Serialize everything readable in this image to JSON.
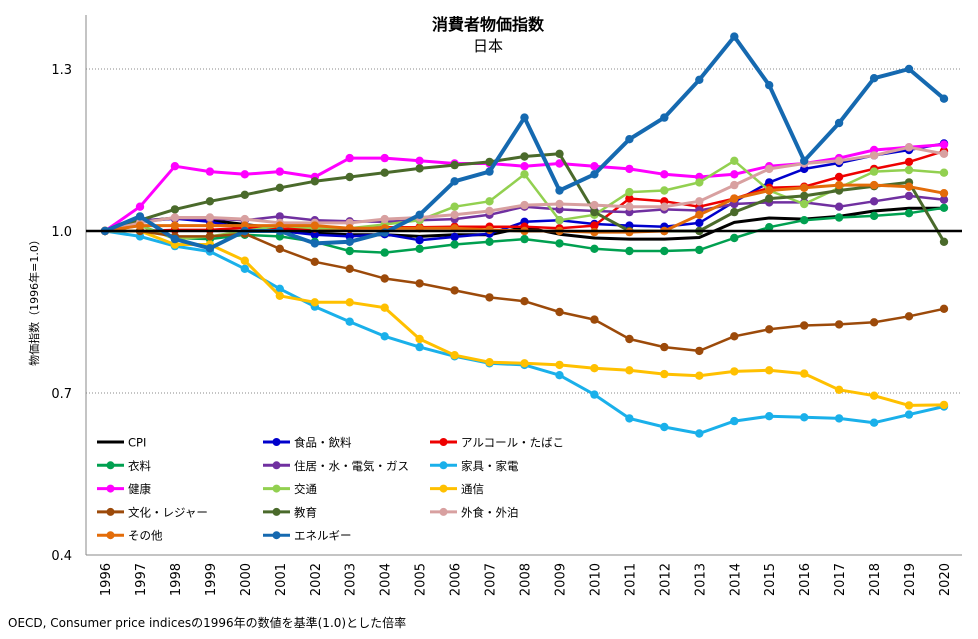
{
  "chart_data": {
    "type": "line",
    "title": "消費者物価指数",
    "subtitle": "日本",
    "ylabel": "物価指数（1996年=1.0）",
    "xlabel": "",
    "source": "OECD, Consumer price indicesの1996年の数値を基準(1.0)とした倍率",
    "ylim": [
      0.4,
      1.4
    ],
    "yticks": [
      0.4,
      0.7,
      1.0,
      1.3
    ],
    "ytick_labels": [
      "0.4",
      "0.7",
      "1.0",
      "1.3"
    ],
    "reference_line": 1.0,
    "categories": [
      "1996",
      "1997",
      "1998",
      "1999",
      "2000",
      "2001",
      "2002",
      "2003",
      "2004",
      "2005",
      "2006",
      "2007",
      "2008",
      "2009",
      "2010",
      "2011",
      "2012",
      "2013",
      "2014",
      "2015",
      "2016",
      "2017",
      "2018",
      "2019",
      "2020"
    ],
    "series": [
      {
        "name": "CPI",
        "color": "#000000",
        "width": 3,
        "marker": false,
        "values": [
          1.0,
          1.018,
          1.024,
          1.02,
          1.012,
          1.005,
          0.996,
          0.993,
          0.993,
          0.99,
          0.993,
          0.993,
          1.007,
          0.994,
          0.987,
          0.985,
          0.985,
          0.988,
          1.016,
          1.024,
          1.022,
          1.027,
          1.037,
          1.042,
          1.042
        ]
      },
      {
        "name": "食品・飲料",
        "color": "#0000cc",
        "width": 2.5,
        "marker": true,
        "values": [
          1.0,
          1.017,
          1.023,
          1.017,
          1.005,
          1.0,
          0.993,
          0.99,
          0.994,
          0.983,
          0.989,
          0.995,
          1.017,
          1.02,
          1.013,
          1.01,
          1.008,
          1.015,
          1.054,
          1.09,
          1.115,
          1.126,
          1.14,
          1.15,
          1.162
        ]
      },
      {
        "name": "アルコール・たばこ",
        "color": "#ee0000",
        "width": 2.5,
        "marker": true,
        "values": [
          1.0,
          1.0,
          1.002,
          1.002,
          1.006,
          1.004,
          1.004,
          1.004,
          1.007,
          1.007,
          1.008,
          1.008,
          1.008,
          1.005,
          1.01,
          1.06,
          1.055,
          1.045,
          1.06,
          1.08,
          1.082,
          1.1,
          1.115,
          1.128,
          1.148
        ]
      },
      {
        "name": "衣料",
        "color": "#00a050",
        "width": 2.5,
        "marker": true,
        "values": [
          1.0,
          1.01,
          0.987,
          0.985,
          0.993,
          0.99,
          0.98,
          0.963,
          0.96,
          0.967,
          0.975,
          0.98,
          0.985,
          0.977,
          0.967,
          0.963,
          0.963,
          0.965,
          0.987,
          1.007,
          1.02,
          1.025,
          1.028,
          1.033,
          1.043
        ]
      },
      {
        "name": "住居・水・電気・ガス",
        "color": "#7030a0",
        "width": 2.5,
        "marker": true,
        "values": [
          1.0,
          1.02,
          1.023,
          1.023,
          1.02,
          1.027,
          1.02,
          1.018,
          1.017,
          1.02,
          1.022,
          1.03,
          1.045,
          1.04,
          1.037,
          1.035,
          1.04,
          1.038,
          1.05,
          1.053,
          1.053,
          1.045,
          1.055,
          1.065,
          1.058
        ]
      },
      {
        "name": "家具・家電",
        "color": "#1ab0ea",
        "width": 3,
        "marker": true,
        "values": [
          1.0,
          0.99,
          0.972,
          0.962,
          0.93,
          0.893,
          0.86,
          0.832,
          0.805,
          0.785,
          0.768,
          0.755,
          0.752,
          0.733,
          0.697,
          0.653,
          0.637,
          0.625,
          0.648,
          0.657,
          0.655,
          0.653,
          0.645,
          0.66,
          0.675
        ]
      },
      {
        "name": "健康",
        "color": "#ff00ff",
        "width": 3,
        "marker": true,
        "values": [
          1.0,
          1.045,
          1.12,
          1.11,
          1.105,
          1.11,
          1.1,
          1.135,
          1.135,
          1.13,
          1.125,
          1.125,
          1.12,
          1.125,
          1.12,
          1.115,
          1.105,
          1.1,
          1.105,
          1.12,
          1.125,
          1.135,
          1.15,
          1.155,
          1.16
        ]
      },
      {
        "name": "交通",
        "color": "#92d050",
        "width": 2.5,
        "marker": true,
        "values": [
          1.0,
          1.01,
          0.985,
          0.99,
          1.0,
          1.01,
          1.005,
          1.005,
          1.012,
          1.02,
          1.045,
          1.055,
          1.105,
          1.02,
          1.03,
          1.072,
          1.075,
          1.09,
          1.13,
          1.075,
          1.05,
          1.08,
          1.11,
          1.113,
          1.108
        ]
      },
      {
        "name": "通信",
        "color": "#ffc000",
        "width": 3,
        "marker": true,
        "values": [
          1.0,
          1.0,
          0.975,
          0.975,
          0.945,
          0.88,
          0.868,
          0.868,
          0.858,
          0.8,
          0.77,
          0.757,
          0.755,
          0.752,
          0.746,
          0.742,
          0.735,
          0.732,
          0.74,
          0.742,
          0.736,
          0.706,
          0.695,
          0.677,
          0.678
        ]
      },
      {
        "name": "文化・レジャー",
        "color": "#9c4a0a",
        "width": 2.5,
        "marker": true,
        "values": [
          1.0,
          1.0,
          0.99,
          0.99,
          0.995,
          0.967,
          0.943,
          0.93,
          0.912,
          0.903,
          0.89,
          0.877,
          0.87,
          0.85,
          0.836,
          0.8,
          0.785,
          0.778,
          0.805,
          0.818,
          0.825,
          0.827,
          0.831,
          0.842,
          0.856
        ]
      },
      {
        "name": "教育",
        "color": "#4a6a2b",
        "width": 3,
        "marker": true,
        "values": [
          1.0,
          1.02,
          1.04,
          1.055,
          1.067,
          1.08,
          1.092,
          1.1,
          1.108,
          1.116,
          1.122,
          1.128,
          1.138,
          1.143,
          1.035,
          1.0,
          1.0,
          1.0,
          1.035,
          1.06,
          1.065,
          1.075,
          1.083,
          1.09,
          0.98
        ]
      },
      {
        "name": "外食・外泊",
        "color": "#d8a0a0",
        "width": 3,
        "marker": true,
        "values": [
          1.0,
          1.015,
          1.025,
          1.025,
          1.022,
          1.015,
          1.015,
          1.015,
          1.022,
          1.025,
          1.03,
          1.037,
          1.048,
          1.05,
          1.048,
          1.045,
          1.045,
          1.055,
          1.085,
          1.115,
          1.125,
          1.13,
          1.14,
          1.155,
          1.143
        ]
      },
      {
        "name": "その他",
        "color": "#e36c09",
        "width": 3,
        "marker": true,
        "values": [
          1.0,
          1.01,
          1.01,
          1.01,
          1.01,
          1.01,
          1.01,
          1.005,
          1.005,
          1.005,
          1.005,
          1.002,
          1.0,
          1.0,
          0.998,
          0.998,
          1.0,
          1.03,
          1.06,
          1.075,
          1.08,
          1.085,
          1.085,
          1.082,
          1.07
        ]
      },
      {
        "name": "エネルギー",
        "color": "#1569b0",
        "width": 4,
        "marker": true,
        "values": [
          1.0,
          1.027,
          0.985,
          0.968,
          1.0,
          1.0,
          0.977,
          0.98,
          0.997,
          1.03,
          1.092,
          1.11,
          1.21,
          1.075,
          1.105,
          1.17,
          1.21,
          1.28,
          1.36,
          1.27,
          1.13,
          1.2,
          1.283,
          1.3,
          1.245
        ]
      }
    ],
    "legend": {
      "placement": "lower-left inside plot",
      "columns": 3
    }
  }
}
